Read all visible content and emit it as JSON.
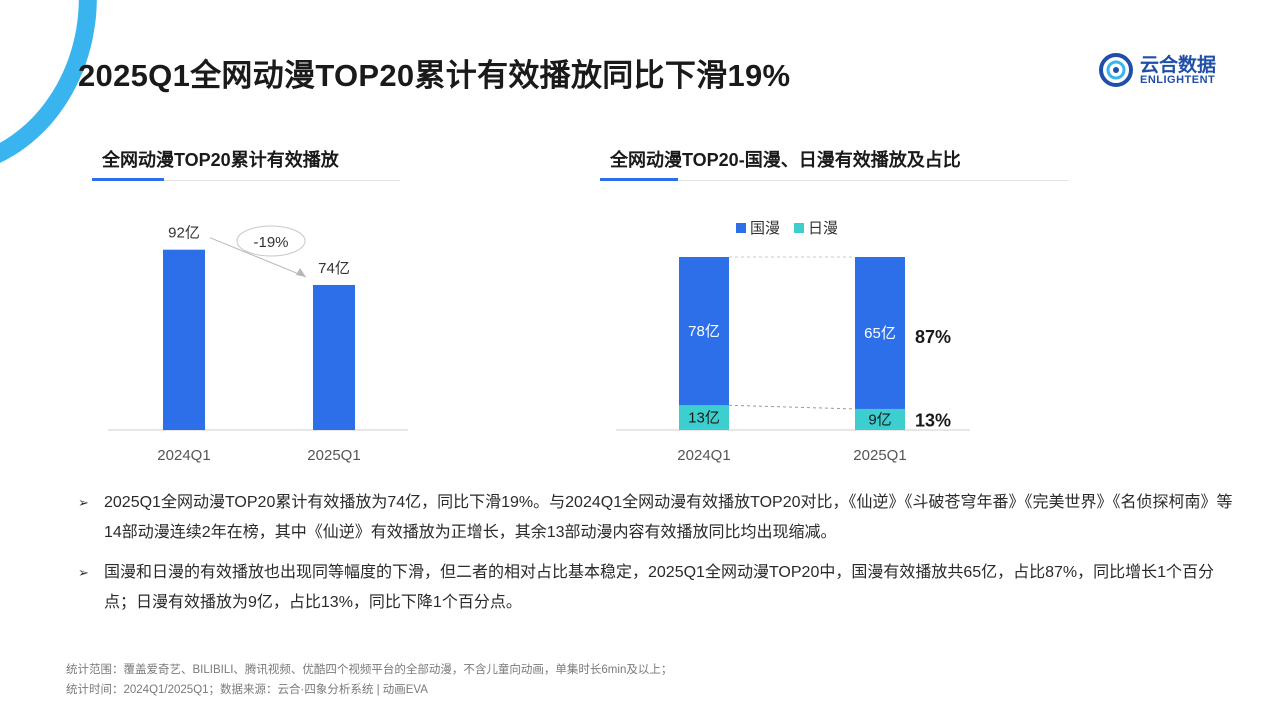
{
  "title": "2025Q1全网动漫TOP20累计有效播放同比下滑19%",
  "logo": {
    "cn": "云合数据",
    "en": "ENLIGHTENT"
  },
  "left_section_title": "全网动漫TOP20累计有效播放",
  "right_section_title": "全网动漫TOP20-国漫、日漫有效播放及占比",
  "colors": {
    "blue": "#2c6fe8",
    "teal": "#3dcfcf",
    "accent": "#3ab4ef"
  },
  "chart_data": [
    {
      "type": "bar",
      "title": "全网动漫TOP20累计有效播放",
      "categories": [
        "2024Q1",
        "2025Q1"
      ],
      "values": [
        92,
        74
      ],
      "value_labels": [
        "92亿",
        "74亿"
      ],
      "unit": "亿",
      "annotation": "-19%",
      "ylim": [
        0,
        100
      ]
    },
    {
      "type": "bar",
      "stacked": true,
      "title": "全网动漫TOP20-国漫、日漫有效播放及占比",
      "categories": [
        "2024Q1",
        "2025Q1"
      ],
      "legend_position": "top",
      "series": [
        {
          "name": "日漫",
          "values": [
            13,
            9
          ],
          "labels": [
            "13亿",
            "9亿"
          ],
          "color": "#3dcfcf"
        },
        {
          "name": "国漫",
          "values": [
            78,
            65
          ],
          "labels": [
            "78亿",
            "65亿"
          ],
          "color": "#2c6fe8"
        }
      ],
      "share_labels": {
        "国漫": "87%",
        "日漫": "13%"
      }
    }
  ],
  "bullets": [
    "2025Q1全网动漫TOP20累计有效播放为74亿，同比下滑19%。与2024Q1全网动漫有效播放TOP20对比，《仙逆》《斗破苍穹年番》《完美世界》《名侦探柯南》等14部动漫连续2年在榜，其中《仙逆》有效播放为正增长，其余13部动漫内容有效播放同比均出现缩减。",
    "国漫和日漫的有效播放也出现同等幅度的下滑，但二者的相对占比基本稳定，2025Q1全网动漫TOP20中，国漫有效播放共65亿，占比87%，同比增长1个百分点；日漫有效播放为9亿，占比13%，同比下降1个百分点。"
  ],
  "bullet_marker": "➢",
  "footer": [
    "统计范围：覆盖爱奇艺、BILIBILI、腾讯视频、优酷四个视频平台的全部动漫，不含儿童向动画，单集时长6min及以上；",
    "统计时间：2024Q1/2025Q1；数据来源：云合·四象分析系统 | 动画EVA"
  ]
}
